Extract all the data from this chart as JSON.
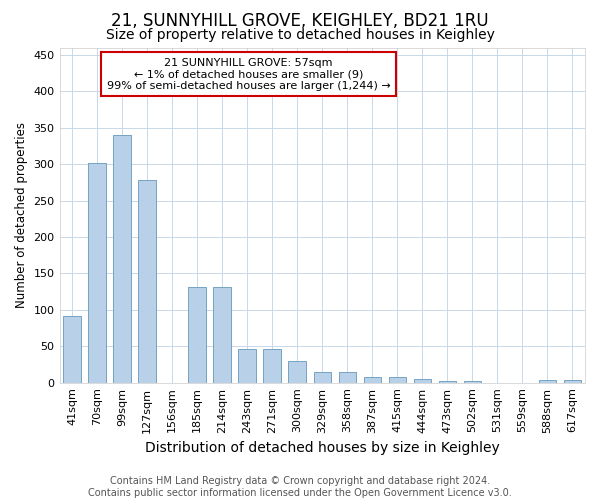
{
  "title_line1": "21, SUNNYHILL GROVE, KEIGHLEY, BD21 1RU",
  "title_line2": "Size of property relative to detached houses in Keighley",
  "xlabel": "Distribution of detached houses by size in Keighley",
  "ylabel": "Number of detached properties",
  "categories": [
    "41sqm",
    "70sqm",
    "99sqm",
    "127sqm",
    "156sqm",
    "185sqm",
    "214sqm",
    "243sqm",
    "271sqm",
    "300sqm",
    "329sqm",
    "358sqm",
    "387sqm",
    "415sqm",
    "444sqm",
    "473sqm",
    "502sqm",
    "531sqm",
    "559sqm",
    "588sqm",
    "617sqm"
  ],
  "values": [
    91,
    301,
    340,
    278,
    0,
    131,
    131,
    46,
    46,
    30,
    14,
    14,
    8,
    8,
    5,
    2,
    2,
    0,
    0,
    4,
    4
  ],
  "bar_color": "#b8d0e8",
  "bar_edge_color": "#6699bb",
  "annotation_box_color": "#cc0000",
  "annotation_text_line1": "21 SUNNYHILL GROVE: 57sqm",
  "annotation_text_line2": "← 1% of detached houses are smaller (9)",
  "annotation_text_line3": "99% of semi-detached houses are larger (1,244) →",
  "ylim": [
    0,
    460
  ],
  "yticks": [
    0,
    50,
    100,
    150,
    200,
    250,
    300,
    350,
    400,
    450
  ],
  "footer_line1": "Contains HM Land Registry data © Crown copyright and database right 2024.",
  "footer_line2": "Contains public sector information licensed under the Open Government Licence v3.0.",
  "background_color": "#ffffff",
  "grid_color": "#c8d8e8",
  "title1_fontsize": 12,
  "title2_fontsize": 10,
  "xlabel_fontsize": 10,
  "ylabel_fontsize": 8.5,
  "tick_fontsize": 8,
  "footer_fontsize": 7,
  "bar_width": 0.7
}
